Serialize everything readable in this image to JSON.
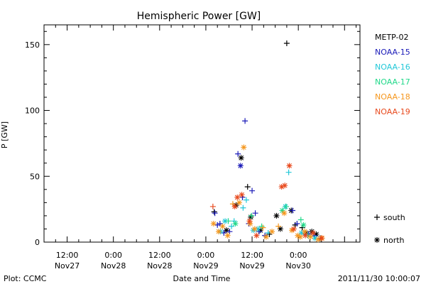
{
  "chart_data": {
    "type": "scatter",
    "title": "Hemispheric Power [GW]",
    "xlabel": "Date and Time",
    "ylabel": "P [GW]",
    "ylim": [
      0,
      165
    ],
    "y_ticks": [
      0,
      50,
      100,
      150
    ],
    "xlim": [
      "2011-11-27 06:00",
      "2011-11-30 16:00"
    ],
    "x_tick_labels": [
      {
        "time": "2011-11-27 12:00",
        "line1": "12:00",
        "line2": "Nov27"
      },
      {
        "time": "2011-11-28 00:00",
        "line1": "0:00",
        "line2": "Nov28"
      },
      {
        "time": "2011-11-28 12:00",
        "line1": "12:00",
        "line2": "Nov28"
      },
      {
        "time": "2011-11-29 00:00",
        "line1": "0:00",
        "line2": "Nov29"
      },
      {
        "time": "2011-11-29 12:00",
        "line1": "12:00",
        "line2": "Nov29"
      },
      {
        "time": "2011-11-30 00:00",
        "line1": "0:00",
        "line2": "Nov30"
      }
    ],
    "legend_position": "right",
    "marker_legend": [
      {
        "marker": "+",
        "label": "south"
      },
      {
        "marker": "*",
        "label": "north"
      }
    ],
    "series": [
      {
        "name": "METP-02",
        "color": "#000000",
        "points": [
          {
            "x": "2011-11-29 02:10",
            "y": 23,
            "m": "+"
          },
          {
            "x": "2011-11-29 05:20",
            "y": 9,
            "m": "*"
          },
          {
            "x": "2011-11-29 07:50",
            "y": 28,
            "m": "*"
          },
          {
            "x": "2011-11-29 09:10",
            "y": 64,
            "m": "*"
          },
          {
            "x": "2011-11-29 10:50",
            "y": 42,
            "m": "+"
          },
          {
            "x": "2011-11-29 11:40",
            "y": 19,
            "m": "*"
          },
          {
            "x": "2011-11-29 14:10",
            "y": 9,
            "m": "*"
          },
          {
            "x": "2011-11-29 16:30",
            "y": 6,
            "m": "+"
          },
          {
            "x": "2011-11-29 18:20",
            "y": 20,
            "m": "*"
          },
          {
            "x": "2011-11-29 19:20",
            "y": 10,
            "m": "*"
          },
          {
            "x": "2011-11-29 21:00",
            "y": 151,
            "m": "+"
          },
          {
            "x": "2011-11-29 22:10",
            "y": 24,
            "m": "*"
          },
          {
            "x": "2011-11-29 23:10",
            "y": 13,
            "m": "+"
          },
          {
            "x": "2011-11-30 01:00",
            "y": 11,
            "m": "+"
          },
          {
            "x": "2011-11-30 02:00",
            "y": 7,
            "m": "*"
          },
          {
            "x": "2011-11-30 03:30",
            "y": 8,
            "m": "*"
          },
          {
            "x": "2011-11-30 04:40",
            "y": 6,
            "m": "*"
          },
          {
            "x": "2011-11-30 05:40",
            "y": 3,
            "m": "+"
          }
        ]
      },
      {
        "name": "NOAA-15",
        "color": "#1a1ab8",
        "points": [
          {
            "x": "2011-11-29 02:20",
            "y": 22,
            "m": "+"
          },
          {
            "x": "2011-11-29 03:00",
            "y": 13,
            "m": "+"
          },
          {
            "x": "2011-11-29 03:40",
            "y": 14,
            "m": "+"
          },
          {
            "x": "2011-11-29 04:40",
            "y": 7,
            "m": "+"
          },
          {
            "x": "2011-11-29 06:10",
            "y": 8,
            "m": "+"
          },
          {
            "x": "2011-11-29 08:20",
            "y": 67,
            "m": "+"
          },
          {
            "x": "2011-11-29 09:00",
            "y": 58,
            "m": "*"
          },
          {
            "x": "2011-11-29 09:30",
            "y": 34,
            "m": "+"
          },
          {
            "x": "2011-11-29 10:10",
            "y": 92,
            "m": "+"
          },
          {
            "x": "2011-11-29 11:10",
            "y": 14,
            "m": "+"
          },
          {
            "x": "2011-11-29 12:00",
            "y": 39,
            "m": "+"
          },
          {
            "x": "2011-11-29 12:50",
            "y": 22,
            "m": "+"
          },
          {
            "x": "2011-11-29 13:50",
            "y": 8,
            "m": "+"
          },
          {
            "x": "2011-11-29 15:20",
            "y": 5,
            "m": "+"
          },
          {
            "x": "2011-11-29 22:30",
            "y": 24,
            "m": "+"
          },
          {
            "x": "2011-11-29 23:40",
            "y": 14,
            "m": "+"
          },
          {
            "x": "2011-11-30 02:40",
            "y": 6,
            "m": "+"
          },
          {
            "x": "2011-11-30 04:10",
            "y": 5,
            "m": "+"
          }
        ]
      },
      {
        "name": "NOAA-16",
        "color": "#22c8d8",
        "points": [
          {
            "x": "2011-11-29 03:50",
            "y": 8,
            "m": "*"
          },
          {
            "x": "2011-11-29 05:00",
            "y": 16,
            "m": "*"
          },
          {
            "x": "2011-11-29 06:40",
            "y": 12,
            "m": "+"
          },
          {
            "x": "2011-11-29 07:20",
            "y": 16,
            "m": "+"
          },
          {
            "x": "2011-11-29 09:40",
            "y": 26,
            "m": "+"
          },
          {
            "x": "2011-11-29 10:30",
            "y": 32,
            "m": "+"
          },
          {
            "x": "2011-11-29 12:20",
            "y": 9,
            "m": "*"
          },
          {
            "x": "2011-11-29 13:30",
            "y": 10,
            "m": "*"
          },
          {
            "x": "2011-11-29 16:10",
            "y": 7,
            "m": "+"
          },
          {
            "x": "2011-11-29 20:40",
            "y": 27,
            "m": "*"
          },
          {
            "x": "2011-11-29 21:30",
            "y": 53,
            "m": "+"
          },
          {
            "x": "2011-11-30 00:50",
            "y": 7,
            "m": "*"
          },
          {
            "x": "2011-11-30 04:20",
            "y": 3,
            "m": "*"
          }
        ]
      },
      {
        "name": "NOAA-17",
        "color": "#22d98a",
        "points": [
          {
            "x": "2011-11-29 05:50",
            "y": 16,
            "m": "+"
          },
          {
            "x": "2011-11-29 07:40",
            "y": 14,
            "m": "*"
          },
          {
            "x": "2011-11-29 11:50",
            "y": 20,
            "m": "+"
          },
          {
            "x": "2011-11-29 14:30",
            "y": 12,
            "m": "+"
          },
          {
            "x": "2011-11-29 19:50",
            "y": 24,
            "m": "*"
          },
          {
            "x": "2011-11-29 20:50",
            "y": 27,
            "m": "+"
          },
          {
            "x": "2011-11-30 00:40",
            "y": 17,
            "m": "+"
          },
          {
            "x": "2011-11-30 01:20",
            "y": 13,
            "m": "*"
          },
          {
            "x": "2011-11-30 02:30",
            "y": 5,
            "m": "+"
          }
        ]
      },
      {
        "name": "NOAA-18",
        "color": "#f5971e",
        "points": [
          {
            "x": "2011-11-29 02:00",
            "y": 14,
            "m": "*"
          },
          {
            "x": "2011-11-29 03:20",
            "y": 8,
            "m": "*"
          },
          {
            "x": "2011-11-29 04:20",
            "y": 12,
            "m": "*"
          },
          {
            "x": "2011-11-29 05:40",
            "y": 5,
            "m": "*"
          },
          {
            "x": "2011-11-29 07:00",
            "y": 29,
            "m": "+"
          },
          {
            "x": "2011-11-29 08:40",
            "y": 30,
            "m": "*"
          },
          {
            "x": "2011-11-29 09:50",
            "y": 72,
            "m": "*"
          },
          {
            "x": "2011-11-29 11:30",
            "y": 14,
            "m": "*"
          },
          {
            "x": "2011-11-29 12:40",
            "y": 10,
            "m": "*"
          },
          {
            "x": "2011-11-29 14:50",
            "y": 11,
            "m": "+"
          },
          {
            "x": "2011-11-29 15:40",
            "y": 4,
            "m": "*"
          },
          {
            "x": "2011-11-29 17:10",
            "y": 8,
            "m": "*"
          },
          {
            "x": "2011-11-29 18:50",
            "y": 12,
            "m": "+"
          },
          {
            "x": "2011-11-29 20:20",
            "y": 22,
            "m": "*"
          },
          {
            "x": "2011-11-29 22:20",
            "y": 9,
            "m": "*"
          },
          {
            "x": "2011-11-29 23:50",
            "y": 5,
            "m": "*"
          },
          {
            "x": "2011-11-30 00:30",
            "y": 4,
            "m": "*"
          },
          {
            "x": "2011-11-30 01:40",
            "y": 8,
            "m": "*"
          },
          {
            "x": "2011-11-30 03:10",
            "y": 4,
            "m": "*"
          },
          {
            "x": "2011-11-30 05:10",
            "y": 2,
            "m": "*"
          },
          {
            "x": "2011-11-30 06:10",
            "y": 3,
            "m": "*"
          }
        ]
      },
      {
        "name": "NOAA-19",
        "color": "#e84a1e",
        "points": [
          {
            "x": "2011-11-29 01:50",
            "y": 27,
            "m": "+"
          },
          {
            "x": "2011-11-29 07:30",
            "y": 27,
            "m": "*"
          },
          {
            "x": "2011-11-29 08:10",
            "y": 34,
            "m": "*"
          },
          {
            "x": "2011-11-29 09:20",
            "y": 36,
            "m": "*"
          },
          {
            "x": "2011-11-29 11:20",
            "y": 16,
            "m": "*"
          },
          {
            "x": "2011-11-29 13:10",
            "y": 5,
            "m": "*"
          },
          {
            "x": "2011-11-29 19:40",
            "y": 42,
            "m": "*"
          },
          {
            "x": "2011-11-29 20:30",
            "y": 43,
            "m": "*"
          },
          {
            "x": "2011-11-29 21:40",
            "y": 58,
            "m": "*"
          },
          {
            "x": "2011-11-29 22:50",
            "y": 10,
            "m": "*"
          },
          {
            "x": "2011-11-30 01:50",
            "y": 5,
            "m": "*"
          },
          {
            "x": "2011-11-30 03:50",
            "y": 7,
            "m": "*"
          },
          {
            "x": "2011-11-30 06:00",
            "y": 3,
            "m": "*"
          }
        ]
      }
    ]
  },
  "footer": {
    "left": "Plot: CCMC",
    "center": "Date and Time",
    "right": "2011/11/30 10:00:07"
  }
}
